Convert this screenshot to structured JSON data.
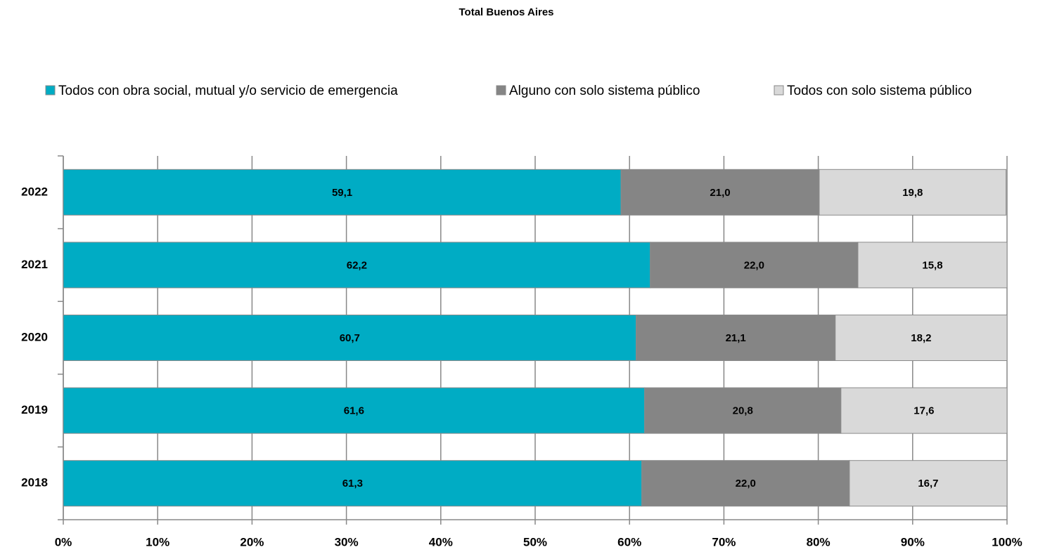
{
  "chart_data": {
    "type": "stacked_barh",
    "title": "Total Buenos Aires",
    "categories": [
      "2022",
      "2021",
      "2020",
      "2019",
      "2018"
    ],
    "series": [
      {
        "name": "Todos con obra social, mutual y/o servicio de emergencia",
        "color": "#00acc4",
        "values": [
          59.1,
          62.2,
          60.7,
          61.6,
          61.3
        ],
        "value_labels": [
          "59,1",
          "62,2",
          "60,7",
          "61,6",
          "61,3"
        ]
      },
      {
        "name": "Alguno con solo sistema público",
        "color": "#858585",
        "values": [
          21.0,
          22.0,
          21.1,
          20.8,
          22.0
        ],
        "value_labels": [
          "21,0",
          "22,0",
          "21,1",
          "20,8",
          "22,0"
        ]
      },
      {
        "name": "Todos con solo sistema público",
        "color": "#d9d9d9",
        "values": [
          19.8,
          15.8,
          18.2,
          17.6,
          16.7
        ],
        "value_labels": [
          "19,8",
          "15,8",
          "18,2",
          "17,6",
          "16,7"
        ]
      }
    ],
    "xlim": [
      0,
      100
    ],
    "xticks": [
      {
        "value": 0,
        "label": "0%"
      },
      {
        "value": 10,
        "label": "10%"
      },
      {
        "value": 20,
        "label": "20%"
      },
      {
        "value": 30,
        "label": "30%"
      },
      {
        "value": 40,
        "label": "40%"
      },
      {
        "value": 50,
        "label": "50%"
      },
      {
        "value": 60,
        "label": "60%"
      },
      {
        "value": 70,
        "label": "70%"
      },
      {
        "value": 80,
        "label": "80%"
      },
      {
        "value": 90,
        "label": "90%"
      },
      {
        "value": 100,
        "label": "100%"
      }
    ],
    "grid": true,
    "legend": "top"
  }
}
